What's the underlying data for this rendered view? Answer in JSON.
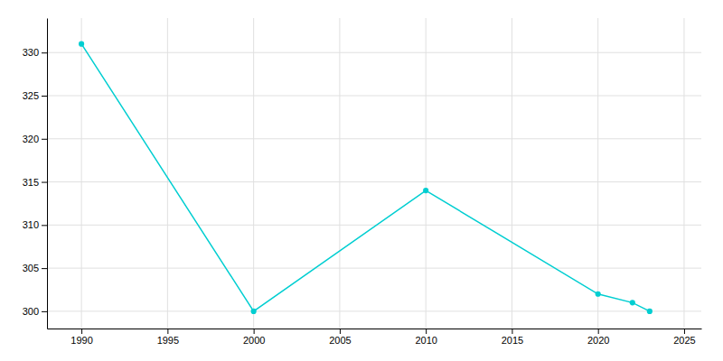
{
  "chart_data": {
    "type": "line",
    "x": [
      1990,
      2000,
      2010,
      2020,
      2022,
      2023
    ],
    "values": [
      331,
      300,
      314,
      302,
      301,
      300
    ],
    "color": "#00CED1",
    "marker": "circle",
    "xlim": [
      1988,
      2026
    ],
    "ylim": [
      298,
      334
    ],
    "xticks": [
      1990,
      1995,
      2000,
      2005,
      2010,
      2015,
      2020,
      2025
    ],
    "yticks": [
      300,
      305,
      310,
      315,
      320,
      325,
      330
    ],
    "grid": true
  }
}
